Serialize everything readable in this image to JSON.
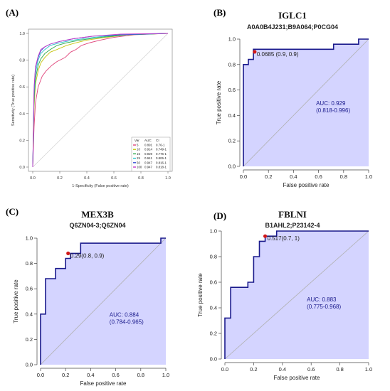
{
  "colors": {
    "roc_fill": "#ccccff",
    "roc_line": "#1a1a8c",
    "diag": "#b0b0b0",
    "point": "#d11919",
    "text_blue": "#1a1a8c"
  },
  "panels": {
    "a": {
      "label": "(A)"
    },
    "b": {
      "label": "(B)",
      "title": "IGLC1",
      "subtitle": "A0A0B4J231;B9A064;P0CG04"
    },
    "c": {
      "label": "(C)",
      "title": "MEX3B",
      "subtitle": "Q6ZN04-3;Q6ZN04"
    },
    "d": {
      "label": "(D)",
      "title": "FBLNI",
      "subtitle": "B1AHL2;P23142-4"
    }
  },
  "chart_data": [
    {
      "id": "A",
      "type": "line",
      "xlabel": "1-Specificity (False positive rate)",
      "ylabel": "Sensitivity (True positive rate)",
      "xlim": [
        0,
        1
      ],
      "ylim": [
        0,
        1
      ],
      "ticks": [
        "0.0",
        "0.2",
        "0.4",
        "0.6",
        "0.8",
        "1.0"
      ],
      "legend": {
        "headers": [
          "Var",
          "AUC",
          "CI"
        ],
        "position": "bottom-right"
      },
      "series": [
        {
          "name": "5",
          "auc": "0.891",
          "ci": "0.76-1",
          "color": "#e0457b",
          "points": [
            [
              0,
              0
            ],
            [
              0.01,
              0.3
            ],
            [
              0.02,
              0.48
            ],
            [
              0.04,
              0.6
            ],
            [
              0.07,
              0.68
            ],
            [
              0.1,
              0.72
            ],
            [
              0.14,
              0.76
            ],
            [
              0.18,
              0.79
            ],
            [
              0.2,
              0.8
            ],
            [
              0.24,
              0.82
            ],
            [
              0.28,
              0.86
            ],
            [
              0.32,
              0.88
            ],
            [
              0.36,
              0.91
            ],
            [
              0.42,
              0.93
            ],
            [
              0.5,
              0.95
            ],
            [
              0.6,
              0.97
            ],
            [
              0.75,
              0.99
            ],
            [
              1,
              1
            ]
          ]
        },
        {
          "name": "10",
          "auc": "0.914",
          "ci": "0.749-1",
          "color": "#c7c410",
          "points": [
            [
              0,
              0
            ],
            [
              0.01,
              0.45
            ],
            [
              0.02,
              0.62
            ],
            [
              0.04,
              0.72
            ],
            [
              0.06,
              0.78
            ],
            [
              0.09,
              0.82
            ],
            [
              0.13,
              0.86
            ],
            [
              0.18,
              0.88
            ],
            [
              0.25,
              0.91
            ],
            [
              0.32,
              0.93
            ],
            [
              0.4,
              0.95
            ],
            [
              0.55,
              0.97
            ],
            [
              0.7,
              0.99
            ],
            [
              1,
              1
            ]
          ]
        },
        {
          "name": "15",
          "auc": "0.929",
          "ci": "0.776-1",
          "color": "#2aa84a",
          "points": [
            [
              0,
              0
            ],
            [
              0.01,
              0.5
            ],
            [
              0.02,
              0.66
            ],
            [
              0.04,
              0.76
            ],
            [
              0.06,
              0.81
            ],
            [
              0.09,
              0.85
            ],
            [
              0.13,
              0.88
            ],
            [
              0.18,
              0.91
            ],
            [
              0.25,
              0.93
            ],
            [
              0.35,
              0.95
            ],
            [
              0.5,
              0.97
            ],
            [
              0.7,
              0.99
            ],
            [
              1,
              1
            ]
          ]
        },
        {
          "name": "25",
          "auc": "0.941",
          "ci": "0.806-1",
          "color": "#2ac2c9",
          "points": [
            [
              0,
              0
            ],
            [
              0.01,
              0.55
            ],
            [
              0.02,
              0.7
            ],
            [
              0.04,
              0.8
            ],
            [
              0.06,
              0.85
            ],
            [
              0.09,
              0.88
            ],
            [
              0.13,
              0.91
            ],
            [
              0.2,
              0.93
            ],
            [
              0.3,
              0.95
            ],
            [
              0.45,
              0.97
            ],
            [
              0.65,
              0.99
            ],
            [
              1,
              1
            ]
          ]
        },
        {
          "name": "50",
          "auc": "0.947",
          "ci": "0.816-1",
          "color": "#3a52d6",
          "points": [
            [
              0,
              0
            ],
            [
              0.01,
              0.58
            ],
            [
              0.02,
              0.74
            ],
            [
              0.04,
              0.82
            ],
            [
              0.06,
              0.87
            ],
            [
              0.09,
              0.9
            ],
            [
              0.13,
              0.92
            ],
            [
              0.2,
              0.94
            ],
            [
              0.3,
              0.96
            ],
            [
              0.45,
              0.98
            ],
            [
              0.65,
              0.99
            ],
            [
              1,
              1
            ]
          ]
        },
        {
          "name": "100",
          "auc": "0.947",
          "ci": "0.818-1",
          "color": "#c43ac7",
          "points": [
            [
              0,
              0
            ],
            [
              0.01,
              0.6
            ],
            [
              0.02,
              0.75
            ],
            [
              0.04,
              0.83
            ],
            [
              0.06,
              0.88
            ],
            [
              0.09,
              0.9
            ],
            [
              0.13,
              0.92
            ],
            [
              0.2,
              0.94
            ],
            [
              0.3,
              0.96
            ],
            [
              0.45,
              0.98
            ],
            [
              0.65,
              0.995
            ],
            [
              1,
              1
            ]
          ]
        }
      ]
    },
    {
      "id": "B",
      "type": "line",
      "xlabel": "False positive rate",
      "ylabel": "True positive rate",
      "xlim": [
        0,
        1
      ],
      "ylim": [
        0,
        1
      ],
      "ticks": [
        "0.0",
        "0.2",
        "0.4",
        "0.6",
        "0.8",
        "1.0"
      ],
      "auc_text": "AUC: 0.929",
      "ci_text": "(0.818-0.996)",
      "auc_pos": [
        0.58,
        0.48
      ],
      "point": {
        "x": 0.09,
        "y": 0.9,
        "label": "0.0685 (0.9, 0.9)"
      },
      "series": [
        {
          "name": "",
          "points": [
            [
              0,
              0
            ],
            [
              0,
              0.8
            ],
            [
              0.04,
              0.8
            ],
            [
              0.04,
              0.84
            ],
            [
              0.08,
              0.84
            ],
            [
              0.08,
              0.92
            ],
            [
              0.72,
              0.92
            ],
            [
              0.72,
              0.96
            ],
            [
              0.92,
              0.96
            ],
            [
              0.92,
              1
            ],
            [
              1,
              1
            ]
          ]
        }
      ]
    },
    {
      "id": "C",
      "type": "line",
      "xlabel": "False positive rate",
      "ylabel": "True positive rate",
      "xlim": [
        0,
        1
      ],
      "ylim": [
        0,
        1
      ],
      "ticks": [
        "0.0",
        "0.2",
        "0.4",
        "0.6",
        "0.8",
        "1.0"
      ],
      "auc_text": "AUC: 0.884",
      "ci_text": "(0.784-0.965)",
      "auc_pos": [
        0.55,
        0.38
      ],
      "point": {
        "x": 0.22,
        "y": 0.88,
        "label": "0.29(0.8, 0.9)"
      },
      "series": [
        {
          "name": "",
          "points": [
            [
              0,
              0
            ],
            [
              0,
              0.4
            ],
            [
              0.04,
              0.4
            ],
            [
              0.04,
              0.68
            ],
            [
              0.12,
              0.68
            ],
            [
              0.12,
              0.76
            ],
            [
              0.2,
              0.76
            ],
            [
              0.2,
              0.84
            ],
            [
              0.24,
              0.84
            ],
            [
              0.24,
              0.88
            ],
            [
              0.32,
              0.88
            ],
            [
              0.32,
              0.96
            ],
            [
              0.96,
              0.96
            ],
            [
              0.96,
              1
            ],
            [
              1,
              1
            ]
          ]
        }
      ]
    },
    {
      "id": "D",
      "type": "line",
      "xlabel": "False positive rate",
      "ylabel": "True positive rate",
      "xlim": [
        0,
        1
      ],
      "ylim": [
        0,
        1
      ],
      "ticks": [
        "0.0",
        "0.2",
        "0.4",
        "0.6",
        "0.8",
        "1.0"
      ],
      "auc_text": "AUC: 0.883",
      "ci_text": "(0.775-0.968)",
      "auc_pos": [
        0.57,
        0.45
      ],
      "point": {
        "x": 0.28,
        "y": 0.96,
        "label": "0.517(0.7, 1)"
      },
      "series": [
        {
          "name": "",
          "points": [
            [
              0,
              0
            ],
            [
              0,
              0.32
            ],
            [
              0.04,
              0.32
            ],
            [
              0.04,
              0.56
            ],
            [
              0.16,
              0.56
            ],
            [
              0.16,
              0.6
            ],
            [
              0.2,
              0.6
            ],
            [
              0.2,
              0.8
            ],
            [
              0.24,
              0.8
            ],
            [
              0.24,
              0.92
            ],
            [
              0.28,
              0.92
            ],
            [
              0.28,
              0.96
            ],
            [
              0.36,
              0.96
            ],
            [
              0.36,
              1
            ],
            [
              1,
              1
            ]
          ]
        }
      ]
    }
  ]
}
